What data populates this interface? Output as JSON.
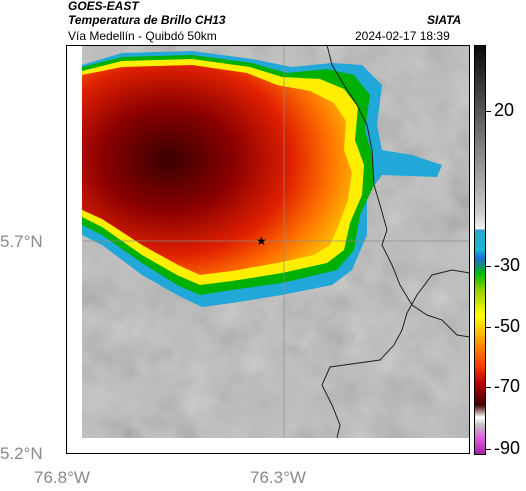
{
  "header": {
    "satellite": "GOES-EAST",
    "product": "Temperatura de Brillo CH13",
    "org": "SIATA",
    "region": "Vía Medellín - Quibdó 50km",
    "datetime": "2024-02-17 18:39"
  },
  "axes": {
    "lat_labels": [
      "5.7°N",
      "5.2°N"
    ],
    "lon_labels": [
      "76.8°W",
      "76.3°W"
    ]
  },
  "colorbar": {
    "tick_labels": [
      "20",
      "-30",
      "-50",
      "-70",
      "-90"
    ]
  },
  "colors": {
    "cold_core": "#3a0000",
    "warm_background": "#c9c9c9",
    "gridline": "#8c8c8c"
  }
}
